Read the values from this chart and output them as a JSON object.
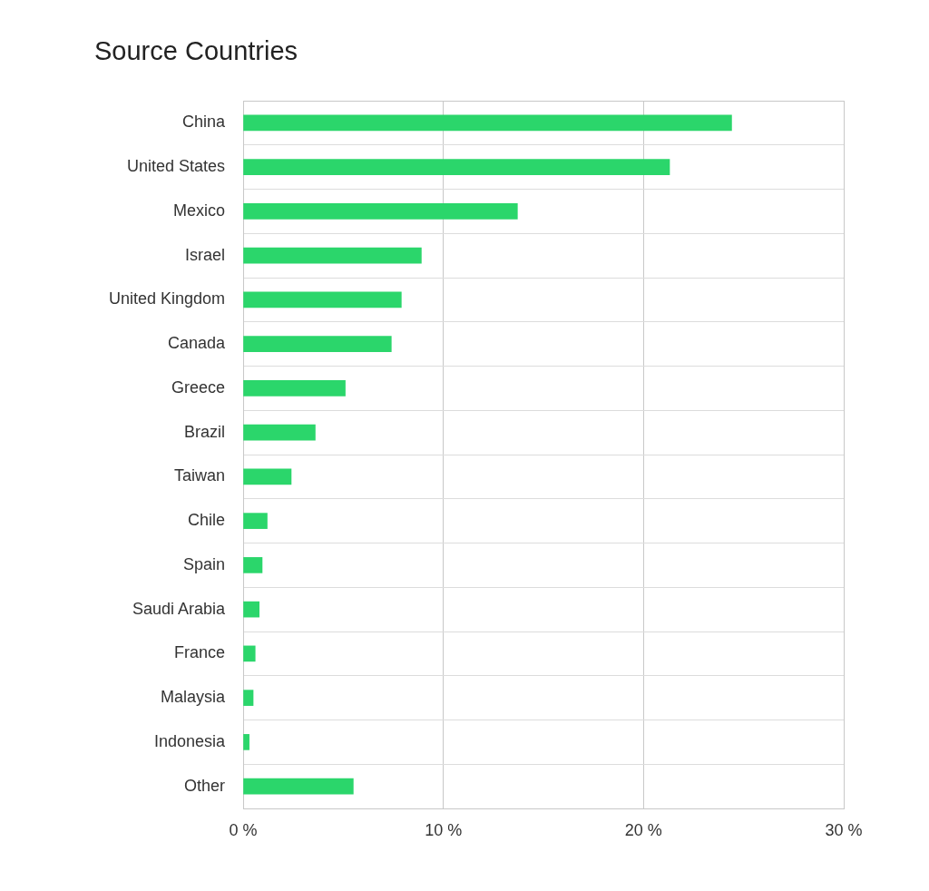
{
  "chart_data": {
    "type": "bar",
    "orientation": "horizontal",
    "title": "Source Countries",
    "categories": [
      "China",
      "United States",
      "Mexico",
      "Israel",
      "United Kingdom",
      "Canada",
      "Greece",
      "Brazil",
      "Taiwan",
      "Chile",
      "Spain",
      "Saudi Arabia",
      "France",
      "Malaysia",
      "Indonesia",
      "Other"
    ],
    "values": [
      24.4,
      21.3,
      13.7,
      8.9,
      7.9,
      7.4,
      5.1,
      3.6,
      2.4,
      1.2,
      0.95,
      0.8,
      0.6,
      0.5,
      0.3,
      5.5
    ],
    "color": "#2bd66b",
    "xlim": [
      0,
      30
    ],
    "xticks": [
      {
        "value": 0,
        "label": "0 %"
      },
      {
        "value": 10,
        "label": "10 %"
      },
      {
        "value": 20,
        "label": "20 %"
      },
      {
        "value": 30,
        "label": "30 %"
      }
    ],
    "grid": true,
    "legend": false
  }
}
